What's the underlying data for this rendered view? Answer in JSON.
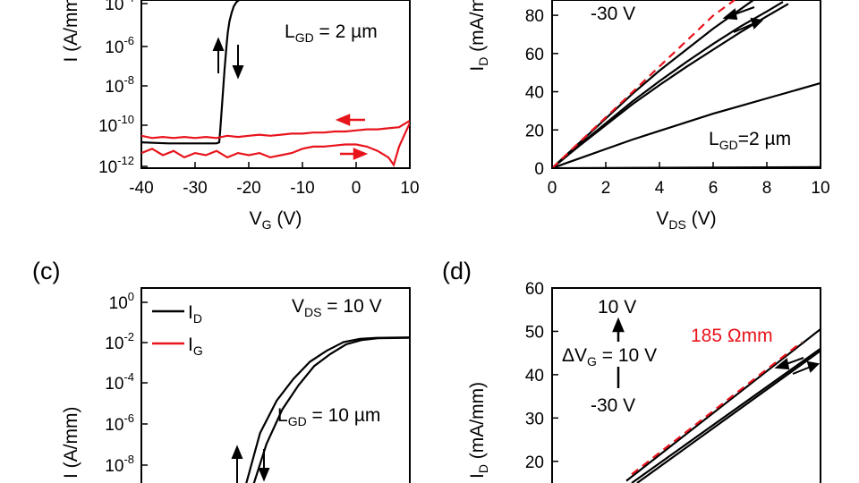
{
  "colors": {
    "black": "#000000",
    "red": "#e8141c"
  },
  "chart_data": [
    {
      "panel": "a",
      "type": "line",
      "yscale": "log",
      "x_ticks": [
        "-40",
        "-30",
        "-20",
        "-10",
        "0",
        "10"
      ],
      "y_ticks": [
        {
          "base": "10",
          "exp": "-4"
        },
        {
          "base": "10",
          "exp": "-6"
        },
        {
          "base": "10",
          "exp": "-8"
        },
        {
          "base": "10",
          "exp": "-10"
        },
        {
          "base": "10",
          "exp": "-12"
        }
      ],
      "xlabel": {
        "main": "V",
        "sub": "G",
        "rest": " (V)"
      },
      "ylabel": "I (A/mm",
      "annotation": {
        "main": "L",
        "sub": "GD",
        "rest": " = 2 µm"
      },
      "xlim": [
        -40,
        10
      ],
      "ylim_log10": [
        -12,
        -4.2
      ],
      "series": [
        {
          "color": "#000000",
          "x": [
            -40,
            -35,
            -30,
            -26,
            -25.5,
            -25.3,
            -25.1,
            -24.9,
            -24.7,
            -24.5,
            -24.3,
            -24.1,
            -23.9,
            -23.6,
            -23.2,
            -22.8,
            -22.3,
            -21.8
          ],
          "log_y": [
            -10.8,
            -10.85,
            -10.85,
            -10.85,
            -10.8,
            -10.2,
            -9.5,
            -8.8,
            -8.1,
            -7.4,
            -6.8,
            -6.2,
            -5.7,
            -5.2,
            -4.8,
            -4.5,
            -4.3,
            -4.2
          ]
        },
        {
          "color": "#e8141c",
          "x": [
            -40,
            -38,
            -36,
            -34,
            -32,
            -30,
            -28,
            -26,
            -24,
            -22,
            -20,
            -18,
            -16,
            -14,
            -12,
            -10,
            -8,
            -6,
            -4,
            -2,
            0,
            2,
            4,
            6,
            8,
            10
          ],
          "log_y": [
            -10.5,
            -10.6,
            -10.55,
            -10.6,
            -10.55,
            -10.6,
            -10.55,
            -10.6,
            -10.5,
            -10.55,
            -10.5,
            -10.45,
            -10.5,
            -10.45,
            -10.4,
            -10.4,
            -10.35,
            -10.35,
            -10.3,
            -10.3,
            -10.25,
            -10.2,
            -10.2,
            -10.15,
            -10.1,
            -9.8
          ]
        },
        {
          "color": "#e8141c",
          "x": [
            -40,
            -38,
            -36,
            -34,
            -32,
            -30,
            -28,
            -26,
            -24,
            -22,
            -20,
            -18,
            -16,
            -14,
            -12,
            -10,
            -8,
            -6,
            -4,
            -2,
            0,
            2,
            4,
            6,
            7,
            8,
            10
          ],
          "log_y": [
            -11.3,
            -11.1,
            -11.4,
            -11.2,
            -11.5,
            -11.3,
            -11.4,
            -11.2,
            -11.5,
            -11.3,
            -11.4,
            -11.3,
            -11.5,
            -11.4,
            -11.3,
            -11.1,
            -11.0,
            -11.0,
            -10.95,
            -10.9,
            -10.9,
            -11.0,
            -11.2,
            -11.5,
            -11.85,
            -11.0,
            -9.9
          ]
        }
      ]
    },
    {
      "panel": "b",
      "type": "line",
      "x_ticks": [
        "0",
        "2",
        "4",
        "6",
        "8",
        "10"
      ],
      "y_ticks": [
        "0",
        "20",
        "40",
        "60",
        "80"
      ],
      "xlabel": {
        "main": "V",
        "sub": "DS",
        "rest": " (V)"
      },
      "ylabel": {
        "main": "I",
        "sub": "D",
        "rest": " (mA/m"
      },
      "annotations": [
        "-30 V"
      ],
      "annotation2": {
        "main": "L",
        "sub": "GD",
        "rest": "=2 µm"
      },
      "xlim": [
        0,
        10
      ],
      "ylim": [
        0,
        88
      ],
      "series": [
        {
          "color": "#000000",
          "x": [
            0,
            1,
            2,
            3,
            4,
            5,
            6,
            6.5,
            7,
            7.5
          ],
          "y": [
            0,
            13,
            26,
            39,
            51,
            62,
            73,
            78,
            83,
            88
          ]
        },
        {
          "color": "#000000",
          "x": [
            0,
            1,
            2,
            3,
            4,
            5,
            6,
            7,
            8,
            8.6
          ],
          "y": [
            0,
            12,
            23.5,
            35,
            45.5,
            55.5,
            65,
            74,
            82,
            87
          ]
        },
        {
          "color": "#000000",
          "x": [
            0,
            1,
            2,
            3,
            4,
            5,
            6,
            7,
            8,
            8.8
          ],
          "y": [
            0,
            11.5,
            22.5,
            33.5,
            43.5,
            53,
            62,
            71,
            79.5,
            86
          ]
        },
        {
          "color": "#000000",
          "x": [
            0,
            1,
            2,
            3,
            4,
            5,
            6,
            7,
            8,
            9,
            10
          ],
          "y": [
            0,
            5,
            10,
            15,
            19.5,
            24,
            28.5,
            32.5,
            36.5,
            40.5,
            44.5
          ]
        },
        {
          "color": "#000000",
          "x": [
            0,
            10
          ],
          "y": [
            0,
            0.5
          ]
        },
        {
          "color": "#e8141c",
          "dashed": true,
          "x": [
            0,
            1,
            2,
            3,
            4,
            5,
            6,
            6.8
          ],
          "y": [
            0,
            13.3,
            26.6,
            39.9,
            53.2,
            66.5,
            79.8,
            88
          ]
        }
      ]
    },
    {
      "panel": "c",
      "type": "line",
      "yscale": "log",
      "y_ticks": [
        {
          "base": "10",
          "exp": "0"
        },
        {
          "base": "10",
          "exp": "-2"
        },
        {
          "base": "10",
          "exp": "-4"
        },
        {
          "base": "10",
          "exp": "-6"
        },
        {
          "base": "10",
          "exp": "-8"
        }
      ],
      "ylabel": "I (A/mm)",
      "legend": [
        {
          "main": "I",
          "sub": "D",
          "color": "#000000"
        },
        {
          "main": "I",
          "sub": "G",
          "color": "#e8141c"
        }
      ],
      "annotation1": {
        "main": "V",
        "sub": "DS",
        "rest": " = 10 V"
      },
      "annotation2": {
        "main": "L",
        "sub": "GD",
        "rest": " = 10 µm"
      },
      "ylim_log10": [
        -8.5,
        0.5
      ],
      "series": [
        {
          "color": "#000000",
          "x": [
            0,
            0.1,
            0.2,
            0.3,
            0.4,
            0.5,
            0.6,
            0.7,
            0.8,
            1
          ],
          "log_y": [
            -9.0,
            -6.2,
            -4.7,
            -3.7,
            -2.9,
            -2.4,
            -2.0,
            -1.85,
            -1.8,
            -1.78
          ]
        },
        {
          "color": "#000000",
          "x": [
            0,
            0.1,
            0.2,
            0.3,
            0.4,
            0.5,
            0.6,
            0.7,
            0.8,
            1
          ],
          "log_y": [
            -9.0,
            -6.7,
            -5.1,
            -4.0,
            -3.1,
            -2.55,
            -2.1,
            -1.9,
            -1.82,
            -1.8
          ]
        }
      ]
    },
    {
      "panel": "d",
      "type": "line",
      "y_ticks": [
        "20",
        "30",
        "40",
        "50",
        "60"
      ],
      "ylabel": {
        "main": "I",
        "sub": "D",
        "rest": " (mA/mm)"
      },
      "annotations": [
        "10 V",
        "-30 V"
      ],
      "annotation_dv": {
        "pre": "ΔV",
        "sub": "G",
        "rest": " = 10 V"
      },
      "annotation_red": "185 Ωmm",
      "ylim": [
        15,
        60
      ],
      "series": [
        {
          "color": "#000000",
          "x": [
            0,
            1
          ],
          "y": [
            15.5,
            50.5
          ]
        },
        {
          "color": "#000000",
          "x": [
            0,
            1
          ],
          "y": [
            15,
            46
          ]
        },
        {
          "color": "#000000",
          "x": [
            0,
            1
          ],
          "y": [
            15,
            45.5
          ]
        },
        {
          "color": "#e8141c",
          "dashed": true,
          "x": [
            0,
            0.9
          ],
          "y": [
            17,
            47.5
          ]
        }
      ]
    }
  ],
  "panel_labels": [
    "(c)",
    "(d)"
  ]
}
